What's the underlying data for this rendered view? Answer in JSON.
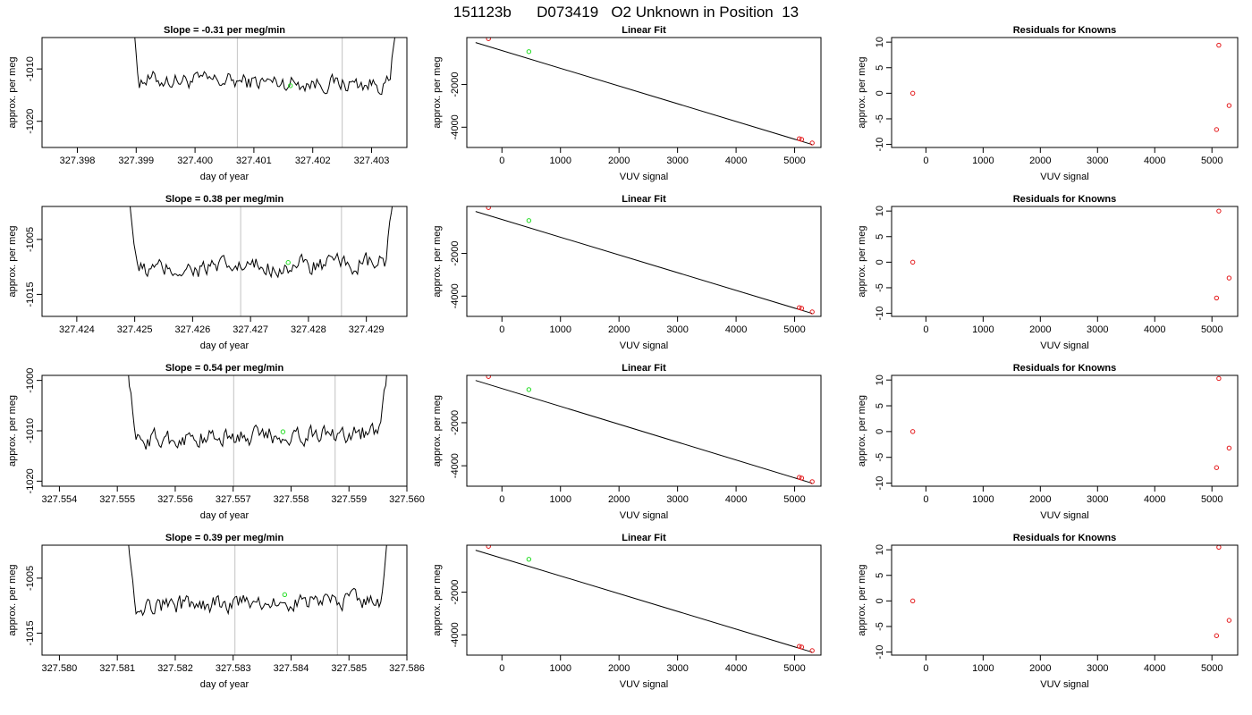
{
  "figure_title": "151123b      D073419   O2 Unknown in Position  13",
  "style": {
    "trace_color": "#000000",
    "known_color": "#e41a1c",
    "unknown_color": "#22dd22",
    "vline_color": "#cccccc",
    "axis_color": "#000000"
  },
  "chart_data": [
    {
      "row": 1,
      "type": "line",
      "title": "Slope =  -0.31  per meg/min",
      "xlabel": "day of year",
      "ylabel": "approx. per meg",
      "xlim": [
        327.3974,
        327.4036
      ],
      "ylim": [
        -1025,
        -1004
      ],
      "xticks": [
        327.398,
        327.399,
        327.4,
        327.401,
        327.402,
        327.403
      ],
      "xtick_labels": [
        "327.398",
        "327.399",
        "327.400",
        "327.401",
        "327.402",
        "327.403"
      ],
      "yticks": [
        -1020,
        -1010
      ],
      "ytick_labels": [
        "-1020",
        "-1010"
      ],
      "trace_x_range": [
        327.39888,
        327.40352
      ],
      "trace_base": -1012.5,
      "trace_amplitude": 2.6,
      "trace_slope": -0.31,
      "vlines": [
        327.40072,
        327.4025
      ],
      "highlight_point": {
        "x": 327.40162,
        "y": -1013.2
      }
    },
    {
      "row": 1,
      "type": "scatter",
      "title": "Linear Fit",
      "xlabel": "VUV signal",
      "ylabel": "approx. per meg",
      "xlim": [
        -600,
        5450
      ],
      "ylim": [
        -4950,
        200
      ],
      "xticks": [
        0,
        1000,
        2000,
        3000,
        4000,
        5000
      ],
      "xtick_labels": [
        "0",
        "1000",
        "2000",
        "3000",
        "4000",
        "5000"
      ],
      "yticks": [
        -4000,
        -2000
      ],
      "ytick_labels": [
        "-4000",
        "-2000"
      ],
      "fit_line": {
        "x": [
          -450,
          5300
        ],
        "y": [
          -36,
          -4812
        ]
      },
      "knowns": [
        {
          "x": -230,
          "y": 147
        },
        {
          "x": 5080,
          "y": -4538
        },
        {
          "x": 5120,
          "y": -4573
        },
        {
          "x": 5300,
          "y": -4740
        }
      ],
      "unknowns": [
        {
          "x": 460,
          "y": -460
        }
      ]
    },
    {
      "row": 1,
      "type": "scatter",
      "title": "Residuals for Knowns",
      "xlabel": "VUV signal",
      "ylabel": "approx. per meg",
      "xlim": [
        -600,
        5450
      ],
      "ylim": [
        -10.6,
        10.9
      ],
      "xticks": [
        0,
        1000,
        2000,
        3000,
        4000,
        5000
      ],
      "xtick_labels": [
        "0",
        "1000",
        "2000",
        "3000",
        "4000",
        "5000"
      ],
      "yticks": [
        -10,
        -5,
        0,
        5,
        10
      ],
      "ytick_labels": [
        "-10",
        "-5",
        "0",
        "5",
        "10"
      ],
      "knowns": [
        {
          "x": -230,
          "y": 0
        },
        {
          "x": 5080,
          "y": -7.1
        },
        {
          "x": 5120,
          "y": 9.4
        },
        {
          "x": 5300,
          "y": -2.4
        }
      ]
    },
    {
      "row": 2,
      "type": "line",
      "title": "Slope =  0.38  per meg/min",
      "xlabel": "day of year",
      "ylabel": "approx. per meg",
      "xlim": [
        327.4234,
        327.4297
      ],
      "ylim": [
        -1019,
        -999
      ],
      "xticks": [
        327.424,
        327.425,
        327.426,
        327.427,
        327.428,
        327.429
      ],
      "xtick_labels": [
        "327.424",
        "327.425",
        "327.426",
        "327.427",
        "327.428",
        "327.429"
      ],
      "yticks": [
        -1015,
        -1005
      ],
      "ytick_labels": [
        "-1015",
        "-1005"
      ],
      "trace_x_range": [
        327.42487,
        327.42955
      ],
      "trace_base": -1010,
      "trace_amplitude": 2.8,
      "trace_slope": 0.38,
      "vlines": [
        327.42683,
        327.42857
      ],
      "highlight_point": {
        "x": 327.42765,
        "y": -1009.2
      }
    },
    {
      "row": 2,
      "type": "scatter",
      "title": "Linear Fit",
      "xlabel": "VUV signal",
      "ylabel": "approx. per meg",
      "xlim": [
        -600,
        5450
      ],
      "ylim": [
        -4950,
        200
      ],
      "xticks": [
        0,
        1000,
        2000,
        3000,
        4000,
        5000
      ],
      "xtick_labels": [
        "0",
        "1000",
        "2000",
        "3000",
        "4000",
        "5000"
      ],
      "yticks": [
        -4000,
        -2000
      ],
      "ytick_labels": [
        "-4000",
        "-2000"
      ],
      "fit_line": {
        "x": [
          -450,
          5300
        ],
        "y": [
          -36,
          -4812
        ]
      },
      "knowns": [
        {
          "x": -230,
          "y": 147
        },
        {
          "x": 5080,
          "y": -4538
        },
        {
          "x": 5120,
          "y": -4573
        },
        {
          "x": 5300,
          "y": -4740
        }
      ],
      "unknowns": [
        {
          "x": 460,
          "y": -460
        }
      ]
    },
    {
      "row": 2,
      "type": "scatter",
      "title": "Residuals for Knowns",
      "xlabel": "VUV signal",
      "ylabel": "approx. per meg",
      "xlim": [
        -600,
        5450
      ],
      "ylim": [
        -10.6,
        10.9
      ],
      "xticks": [
        0,
        1000,
        2000,
        3000,
        4000,
        5000
      ],
      "xtick_labels": [
        "0",
        "1000",
        "2000",
        "3000",
        "4000",
        "5000"
      ],
      "yticks": [
        -10,
        -5,
        0,
        5,
        10
      ],
      "ytick_labels": [
        "-10",
        "-5",
        "0",
        "5",
        "10"
      ],
      "knowns": [
        {
          "x": -230,
          "y": 0
        },
        {
          "x": 5080,
          "y": -7.0
        },
        {
          "x": 5120,
          "y": 10.0
        },
        {
          "x": 5300,
          "y": -3.1
        }
      ]
    },
    {
      "row": 3,
      "type": "line",
      "title": "Slope =  0.54  per meg/min",
      "xlabel": "day of year",
      "ylabel": "approx. per meg",
      "xlim": [
        327.5537,
        327.56
      ],
      "ylim": [
        -1021,
        -999
      ],
      "xticks": [
        327.554,
        327.555,
        327.556,
        327.557,
        327.558,
        327.559,
        327.56
      ],
      "xtick_labels": [
        "327.554",
        "327.555",
        "327.556",
        "327.557",
        "327.558",
        "327.559",
        "327.560"
      ],
      "yticks": [
        -1020,
        -1010,
        -1000
      ],
      "ytick_labels": [
        "-1020",
        "-1010",
        "-1000"
      ],
      "trace_x_range": [
        327.55515,
        327.55975
      ],
      "trace_base": -1011,
      "trace_amplitude": 3.0,
      "trace_slope": 0.54,
      "vlines": [
        327.55701,
        327.55876
      ],
      "highlight_point": {
        "x": 327.55786,
        "y": -1010.2
      }
    },
    {
      "row": 3,
      "type": "scatter",
      "title": "Linear Fit",
      "xlabel": "VUV signal",
      "ylabel": "approx. per meg",
      "xlim": [
        -600,
        5450
      ],
      "ylim": [
        -4950,
        200
      ],
      "xticks": [
        0,
        1000,
        2000,
        3000,
        4000,
        5000
      ],
      "xtick_labels": [
        "0",
        "1000",
        "2000",
        "3000",
        "4000",
        "5000"
      ],
      "yticks": [
        -4000,
        -2000
      ],
      "ytick_labels": [
        "-4000",
        "-2000"
      ],
      "fit_line": {
        "x": [
          -450,
          5300
        ],
        "y": [
          -36,
          -4812
        ]
      },
      "knowns": [
        {
          "x": -230,
          "y": 147
        },
        {
          "x": 5080,
          "y": -4538
        },
        {
          "x": 5120,
          "y": -4573
        },
        {
          "x": 5300,
          "y": -4740
        }
      ],
      "unknowns": [
        {
          "x": 460,
          "y": -460
        }
      ]
    },
    {
      "row": 3,
      "type": "scatter",
      "title": "Residuals for Knowns",
      "xlabel": "VUV signal",
      "ylabel": "approx. per meg",
      "xlim": [
        -600,
        5450
      ],
      "ylim": [
        -10.6,
        10.9
      ],
      "xticks": [
        0,
        1000,
        2000,
        3000,
        4000,
        5000
      ],
      "xtick_labels": [
        "0",
        "1000",
        "2000",
        "3000",
        "4000",
        "5000"
      ],
      "yticks": [
        -10,
        -5,
        0,
        5,
        10
      ],
      "ytick_labels": [
        "-10",
        "-5",
        "0",
        "5",
        "10"
      ],
      "knowns": [
        {
          "x": -230,
          "y": 0
        },
        {
          "x": 5080,
          "y": -7.0
        },
        {
          "x": 5120,
          "y": 10.3
        },
        {
          "x": 5300,
          "y": -3.2
        }
      ]
    },
    {
      "row": 4,
      "type": "line",
      "title": "Slope =  0.39  per meg/min",
      "xlabel": "day of year",
      "ylabel": "approx. per meg",
      "xlim": [
        327.5797,
        327.586
      ],
      "ylim": [
        -1019,
        -999
      ],
      "xticks": [
        327.58,
        327.581,
        327.582,
        327.583,
        327.584,
        327.585,
        327.586
      ],
      "xtick_labels": [
        "327.580",
        "327.581",
        "327.582",
        "327.583",
        "327.584",
        "327.585",
        "327.586"
      ],
      "yticks": [
        -1015,
        -1005
      ],
      "ytick_labels": [
        "-1015",
        "-1005"
      ],
      "trace_x_range": [
        327.58115,
        327.58578
      ],
      "trace_base": -1009.5,
      "trace_amplitude": 2.6,
      "trace_slope": 0.39,
      "vlines": [
        327.58303,
        327.5848
      ],
      "highlight_point": {
        "x": 327.58389,
        "y": -1008.0
      }
    },
    {
      "row": 4,
      "type": "scatter",
      "title": "Linear Fit",
      "xlabel": "VUV signal",
      "ylabel": "approx. per meg",
      "xlim": [
        -600,
        5450
      ],
      "ylim": [
        -4950,
        200
      ],
      "xticks": [
        0,
        1000,
        2000,
        3000,
        4000,
        5000
      ],
      "xtick_labels": [
        "0",
        "1000",
        "2000",
        "3000",
        "4000",
        "5000"
      ],
      "yticks": [
        -4000,
        -2000
      ],
      "ytick_labels": [
        "-4000",
        "-2000"
      ],
      "fit_line": {
        "x": [
          -450,
          5300
        ],
        "y": [
          -36,
          -4812
        ]
      },
      "knowns": [
        {
          "x": -230,
          "y": 147
        },
        {
          "x": 5080,
          "y": -4538
        },
        {
          "x": 5120,
          "y": -4573
        },
        {
          "x": 5300,
          "y": -4740
        }
      ],
      "unknowns": [
        {
          "x": 460,
          "y": -460
        }
      ]
    },
    {
      "row": 4,
      "type": "scatter",
      "title": "Residuals for Knowns",
      "xlabel": "VUV signal",
      "ylabel": "approx. per meg",
      "xlim": [
        -600,
        5450
      ],
      "ylim": [
        -10.6,
        10.9
      ],
      "xticks": [
        0,
        1000,
        2000,
        3000,
        4000,
        5000
      ],
      "xtick_labels": [
        "0",
        "1000",
        "2000",
        "3000",
        "4000",
        "5000"
      ],
      "yticks": [
        -10,
        -5,
        0,
        5,
        10
      ],
      "ytick_labels": [
        "-10",
        "-5",
        "0",
        "5",
        "10"
      ],
      "knowns": [
        {
          "x": -230,
          "y": 0
        },
        {
          "x": 5080,
          "y": -6.8
        },
        {
          "x": 5120,
          "y": 10.5
        },
        {
          "x": 5300,
          "y": -3.8
        }
      ]
    }
  ]
}
